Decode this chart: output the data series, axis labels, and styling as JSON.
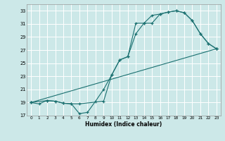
{
  "xlabel": "Humidex (Indice chaleur)",
  "bg_color": "#cce8e8",
  "grid_color": "#ffffff",
  "line_color": "#1a7070",
  "xlim": [
    -0.5,
    23.5
  ],
  "ylim": [
    17,
    34
  ],
  "xticks": [
    0,
    1,
    2,
    3,
    4,
    5,
    6,
    7,
    8,
    9,
    10,
    11,
    12,
    13,
    14,
    15,
    16,
    17,
    18,
    19,
    20,
    21,
    22,
    23
  ],
  "yticks": [
    17,
    19,
    21,
    23,
    25,
    27,
    29,
    31,
    33
  ],
  "line1_x": [
    0,
    1,
    2,
    3,
    4,
    5,
    6,
    7,
    8,
    9,
    10,
    11,
    12,
    13,
    14,
    15,
    16,
    17,
    18,
    19,
    20,
    21,
    22,
    23
  ],
  "line1_y": [
    19.0,
    18.8,
    19.3,
    19.2,
    18.9,
    18.8,
    17.3,
    17.5,
    19.2,
    21.0,
    23.2,
    25.5,
    26.0,
    31.1,
    31.1,
    32.3,
    32.5,
    32.8,
    33.0,
    32.7,
    31.5,
    29.5,
    28.0,
    27.2
  ],
  "line2_x": [
    0,
    2,
    3,
    4,
    5,
    6,
    9,
    10,
    11,
    12,
    13,
    14,
    15,
    16,
    17,
    18,
    19,
    20,
    21,
    22,
    23
  ],
  "line2_y": [
    19.0,
    19.3,
    19.2,
    18.9,
    18.8,
    18.8,
    19.2,
    23.2,
    25.5,
    26.0,
    29.5,
    31.1,
    31.1,
    32.5,
    32.8,
    33.0,
    32.7,
    31.5,
    29.5,
    28.0,
    27.2
  ],
  "line3_x": [
    0,
    23
  ],
  "line3_y": [
    19.0,
    27.2
  ]
}
